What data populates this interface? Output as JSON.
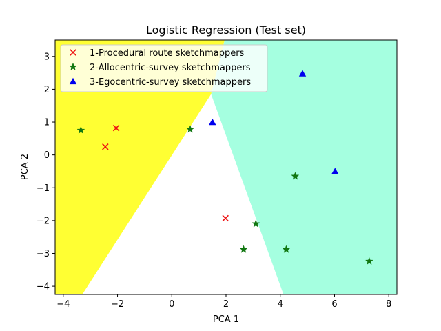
{
  "chart_data": {
    "type": "scatter",
    "title": "Logistic Regression (Test set)",
    "xlabel": "PCA 1",
    "ylabel": "PCA 2",
    "xlim": [
      -4.3,
      8.3
    ],
    "ylim": [
      -4.25,
      3.5
    ],
    "xticks": [
      -4,
      -2,
      0,
      2,
      4,
      6,
      8
    ],
    "yticks": [
      -4,
      -3,
      -2,
      -1,
      0,
      1,
      2,
      3
    ],
    "tick_labels_x": [
      "−4",
      "−2",
      "0",
      "2",
      "4",
      "6",
      "8"
    ],
    "tick_labels_y": [
      "−4",
      "−3",
      "−2",
      "−1",
      "0",
      "1",
      "2",
      "3"
    ],
    "legend_position": "top-left",
    "regions": [
      {
        "class": "1",
        "color": "#ffff33",
        "polygon": [
          [
            -4.3,
            -4.25
          ],
          [
            -3.3,
            -4.25
          ],
          [
            1.45,
            1.85
          ],
          [
            1.95,
            3.5
          ],
          [
            -4.3,
            3.5
          ]
        ]
      },
      {
        "class": "3",
        "color": "#a5ffe0",
        "polygon": [
          [
            1.95,
            3.5
          ],
          [
            8.3,
            3.5
          ],
          [
            8.3,
            -4.25
          ],
          [
            4.12,
            -4.25
          ],
          [
            1.45,
            1.85
          ]
        ]
      }
    ],
    "series": [
      {
        "name": "1-Procedural route sketchmappers",
        "marker": "x",
        "color": "#ee1111",
        "points": [
          [
            -2.45,
            0.25
          ],
          [
            -2.05,
            0.82
          ],
          [
            1.98,
            -1.93
          ]
        ]
      },
      {
        "name": "2-Allocentric-survey sketchmappers",
        "marker": "star",
        "color": "#117711",
        "points": [
          [
            -3.35,
            0.75
          ],
          [
            0.68,
            0.78
          ],
          [
            4.55,
            -0.65
          ],
          [
            3.1,
            -2.1
          ],
          [
            2.65,
            -2.88
          ],
          [
            4.22,
            -2.88
          ],
          [
            7.28,
            -3.24
          ]
        ]
      },
      {
        "name": "3-Egocentric-survey sketchmappers",
        "marker": "triangle",
        "color": "#0000ee",
        "points": [
          [
            1.5,
            1.0
          ],
          [
            4.82,
            2.48
          ],
          [
            6.02,
            -0.5
          ]
        ]
      }
    ]
  }
}
